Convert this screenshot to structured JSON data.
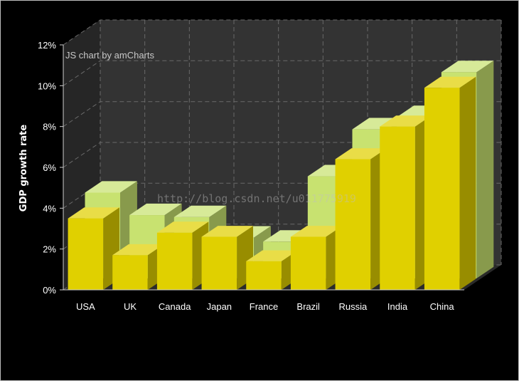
{
  "chart_data": {
    "type": "bar",
    "categories": [
      "USA",
      "UK",
      "Canada",
      "Japan",
      "France",
      "Brazil",
      "Russia",
      "India",
      "China"
    ],
    "series": [
      {
        "values": [
          4.2,
          3.1,
          3.0,
          2.0,
          1.8,
          5.0,
          7.3,
          7.9,
          10.1
        ],
        "color": "#c8e270"
      },
      {
        "values": [
          3.5,
          1.7,
          2.8,
          2.6,
          1.4,
          2.6,
          6.4,
          8.0,
          9.9
        ],
        "color": "#e0d000"
      }
    ],
    "ylabel": "GDP growth rate",
    "ylim": [
      0,
      12
    ],
    "ytick_labels": [
      "0%",
      "2%",
      "4%",
      "6%",
      "8%",
      "10%",
      "12%"
    ],
    "grid": true,
    "style": "3d-column",
    "credit": "JS chart by amCharts",
    "watermark": "http://blog.csdn.net/u011775919",
    "colors": {
      "background": "#000000",
      "plot_back": "#333333",
      "side_wall": "#262626",
      "grid": "#6a6a6a"
    }
  }
}
